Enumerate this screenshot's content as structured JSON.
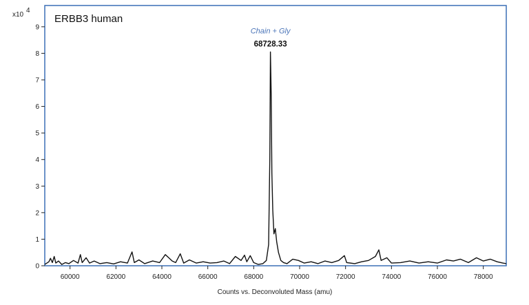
{
  "chart_data": {
    "type": "line",
    "title": "ERBB3 human",
    "xlabel": "Counts vs. Deconvoluted Mass (amu)",
    "ylabel": "",
    "y_multiplier_label": "x10",
    "y_multiplier_exponent": "4",
    "xlim": [
      58900,
      79000
    ],
    "ylim": [
      0,
      9.8
    ],
    "x_ticks": [
      "60000",
      "62000",
      "64000",
      "66000",
      "68000",
      "70000",
      "72000",
      "74000",
      "76000",
      "78000"
    ],
    "y_ticks": [
      "0",
      "1",
      "2",
      "3",
      "4",
      "5",
      "6",
      "7",
      "8",
      "9"
    ],
    "annotation": {
      "label": "Chain + Gly",
      "value": "68728.33",
      "x": 68728.33,
      "y": 8.05
    },
    "colors": {
      "frame": "#3a6fb5",
      "line": "#111111",
      "annotation_label": "#4a74b8"
    },
    "series": [
      {
        "values": [
          [
            58900,
            0.05
          ],
          [
            59080,
            0.15
          ],
          [
            59150,
            0.28
          ],
          [
            59230,
            0.12
          ],
          [
            59310,
            0.35
          ],
          [
            59380,
            0.1
          ],
          [
            59500,
            0.18
          ],
          [
            59640,
            0.05
          ],
          [
            59800,
            0.12
          ],
          [
            59950,
            0.08
          ],
          [
            60150,
            0.2
          ],
          [
            60350,
            0.1
          ],
          [
            60450,
            0.42
          ],
          [
            60530,
            0.12
          ],
          [
            60700,
            0.3
          ],
          [
            60850,
            0.1
          ],
          [
            61050,
            0.18
          ],
          [
            61300,
            0.08
          ],
          [
            61600,
            0.12
          ],
          [
            61900,
            0.07
          ],
          [
            62200,
            0.15
          ],
          [
            62500,
            0.1
          ],
          [
            62700,
            0.52
          ],
          [
            62800,
            0.12
          ],
          [
            63000,
            0.22
          ],
          [
            63250,
            0.08
          ],
          [
            63600,
            0.18
          ],
          [
            63900,
            0.12
          ],
          [
            64150,
            0.42
          ],
          [
            64300,
            0.3
          ],
          [
            64450,
            0.18
          ],
          [
            64600,
            0.12
          ],
          [
            64800,
            0.45
          ],
          [
            64950,
            0.1
          ],
          [
            65200,
            0.22
          ],
          [
            65500,
            0.1
          ],
          [
            65800,
            0.15
          ],
          [
            66100,
            0.1
          ],
          [
            66400,
            0.12
          ],
          [
            66700,
            0.18
          ],
          [
            66950,
            0.08
          ],
          [
            67200,
            0.35
          ],
          [
            67450,
            0.2
          ],
          [
            67600,
            0.4
          ],
          [
            67700,
            0.15
          ],
          [
            67850,
            0.38
          ],
          [
            68000,
            0.12
          ],
          [
            68200,
            0.05
          ],
          [
            68400,
            0.08
          ],
          [
            68550,
            0.2
          ],
          [
            68650,
            0.8
          ],
          [
            68700,
            4.0
          ],
          [
            68728.33,
            8.05
          ],
          [
            68760,
            6.5
          ],
          [
            68790,
            3.5
          ],
          [
            68830,
            2.1
          ],
          [
            68880,
            1.2
          ],
          [
            68940,
            1.4
          ],
          [
            69000,
            0.9
          ],
          [
            69080,
            0.5
          ],
          [
            69180,
            0.2
          ],
          [
            69300,
            0.12
          ],
          [
            69450,
            0.08
          ],
          [
            69700,
            0.25
          ],
          [
            69950,
            0.2
          ],
          [
            70200,
            0.1
          ],
          [
            70500,
            0.15
          ],
          [
            70800,
            0.08
          ],
          [
            71100,
            0.18
          ],
          [
            71400,
            0.12
          ],
          [
            71700,
            0.2
          ],
          [
            71950,
            0.38
          ],
          [
            72050,
            0.12
          ],
          [
            72400,
            0.08
          ],
          [
            72700,
            0.15
          ],
          [
            73000,
            0.2
          ],
          [
            73300,
            0.35
          ],
          [
            73450,
            0.6
          ],
          [
            73550,
            0.2
          ],
          [
            73800,
            0.3
          ],
          [
            74000,
            0.1
          ],
          [
            74400,
            0.12
          ],
          [
            74800,
            0.18
          ],
          [
            75200,
            0.1
          ],
          [
            75600,
            0.15
          ],
          [
            76000,
            0.1
          ],
          [
            76400,
            0.22
          ],
          [
            76700,
            0.18
          ],
          [
            77000,
            0.25
          ],
          [
            77350,
            0.12
          ],
          [
            77700,
            0.3
          ],
          [
            78000,
            0.18
          ],
          [
            78300,
            0.25
          ],
          [
            78600,
            0.15
          ],
          [
            78850,
            0.1
          ],
          [
            79000,
            0.08
          ]
        ]
      }
    ]
  }
}
